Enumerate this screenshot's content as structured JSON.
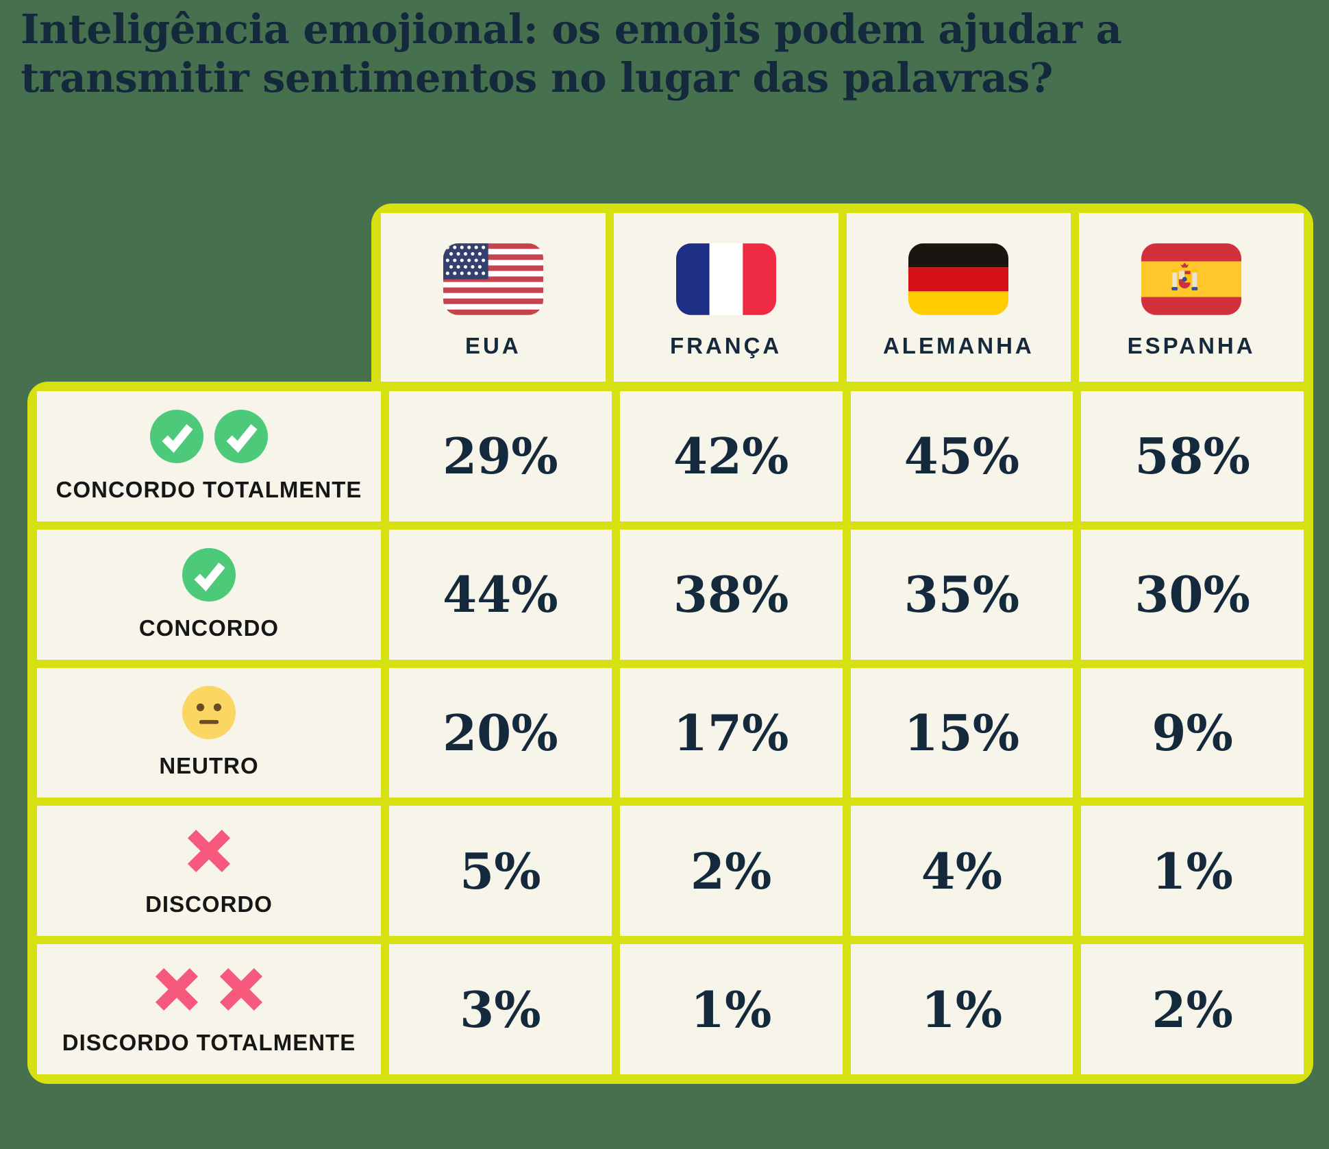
{
  "title": {
    "line1": "Inteligência emojional: os emojis podem ajudar a",
    "line2": "transmitir sentimentos no lugar das palavras?"
  },
  "table": {
    "columns": [
      {
        "id": "eua",
        "label": "EUA",
        "flag": "usa-flag-icon"
      },
      {
        "id": "franca",
        "label": "FRANÇA",
        "flag": "france-flag-icon"
      },
      {
        "id": "alemanha",
        "label": "ALEMANHA",
        "flag": "germany-flag-icon"
      },
      {
        "id": "espanha",
        "label": "ESPANHA",
        "flag": "spain-flag-icon"
      }
    ],
    "rows": [
      {
        "id": "concordo-totalmente",
        "label": "CONCORDO TOTALMENTE",
        "icons": [
          "check-circle-icon",
          "check-circle-icon"
        ],
        "values": [
          "29%",
          "42%",
          "45%",
          "58%"
        ]
      },
      {
        "id": "concordo",
        "label": "CONCORDO",
        "icons": [
          "check-circle-icon"
        ],
        "values": [
          "44%",
          "38%",
          "35%",
          "30%"
        ]
      },
      {
        "id": "neutro",
        "label": "NEUTRO",
        "icons": [
          "neutral-face-icon"
        ],
        "values": [
          "20%",
          "17%",
          "15%",
          "9%"
        ]
      },
      {
        "id": "discordo",
        "label": "DISCORDO",
        "icons": [
          "cross-mark-icon"
        ],
        "values": [
          "5%",
          "2%",
          "4%",
          "1%"
        ]
      },
      {
        "id": "discordo-totalmente",
        "label": "DISCORDO TOTALMENTE",
        "icons": [
          "cross-mark-icon",
          "cross-mark-icon"
        ],
        "values": [
          "3%",
          "1%",
          "1%",
          "2%"
        ]
      }
    ]
  },
  "chart_data": {
    "type": "table",
    "title": "Inteligência emojional: os emojis podem ajudar a transmitir sentimentos no lugar das palavras?",
    "categories": [
      "EUA",
      "FRANÇA",
      "ALEMANHA",
      "ESPANHA"
    ],
    "series": [
      {
        "name": "CONCORDO TOTALMENTE",
        "values": [
          29,
          42,
          45,
          58
        ]
      },
      {
        "name": "CONCORDO",
        "values": [
          44,
          38,
          35,
          30
        ]
      },
      {
        "name": "NEUTRO",
        "values": [
          20,
          17,
          15,
          9
        ]
      },
      {
        "name": "DISCORDO",
        "values": [
          5,
          2,
          4,
          1
        ]
      },
      {
        "name": "DISCORDO TOTALMENTE",
        "values": [
          3,
          1,
          1,
          2
        ]
      }
    ],
    "value_unit": "%"
  },
  "colors": {
    "background": "#47704E",
    "frame_yellow": "#D7E112",
    "cell_cream": "#F7F4EA",
    "text_navy": "#142A3C",
    "check_green": "#4DC97A",
    "cross_pink": "#F6597B",
    "neutral_yellow": "#FBD663"
  }
}
